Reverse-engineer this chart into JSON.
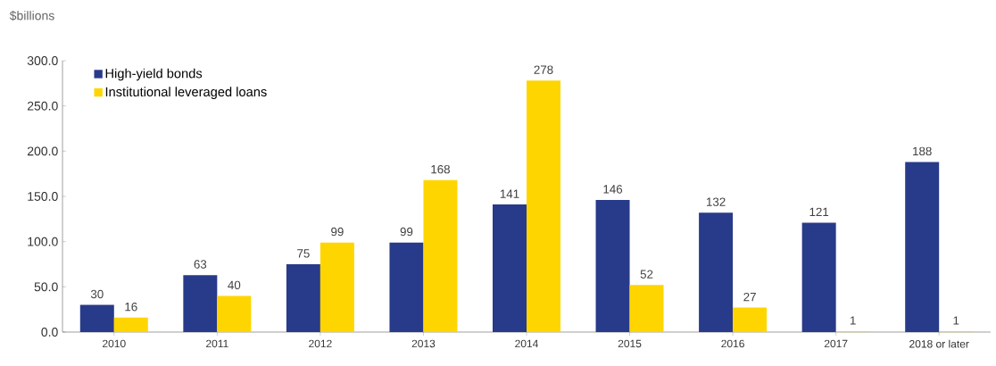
{
  "chart_data": {
    "type": "bar",
    "ylabel": "$billions",
    "categories": [
      "2010",
      "2011",
      "2012",
      "2013",
      "2014",
      "2015",
      "2016",
      "2017",
      "2018 or later"
    ],
    "series": [
      {
        "name": "High-yield bonds",
        "color": "#283a8a",
        "values": [
          30,
          63,
          75,
          99,
          141,
          146,
          132,
          121,
          188
        ]
      },
      {
        "name": "Institutional leveraged loans",
        "color": "#ffd500",
        "values": [
          16,
          40,
          99,
          168,
          278,
          52,
          27,
          1,
          1
        ]
      }
    ],
    "ylim": [
      0,
      300
    ],
    "yticks": [
      {
        "value": 0,
        "label": "0.0"
      },
      {
        "value": 50,
        "label": "50.0"
      },
      {
        "value": 100,
        "label": "100.0"
      },
      {
        "value": 150,
        "label": "150.0"
      },
      {
        "value": 200,
        "label": "200.0"
      },
      {
        "value": 250,
        "label": "250.0"
      },
      {
        "value": 300,
        "label": "300.0"
      }
    ],
    "data_labels": true,
    "legend": "top left",
    "grid": false
  }
}
